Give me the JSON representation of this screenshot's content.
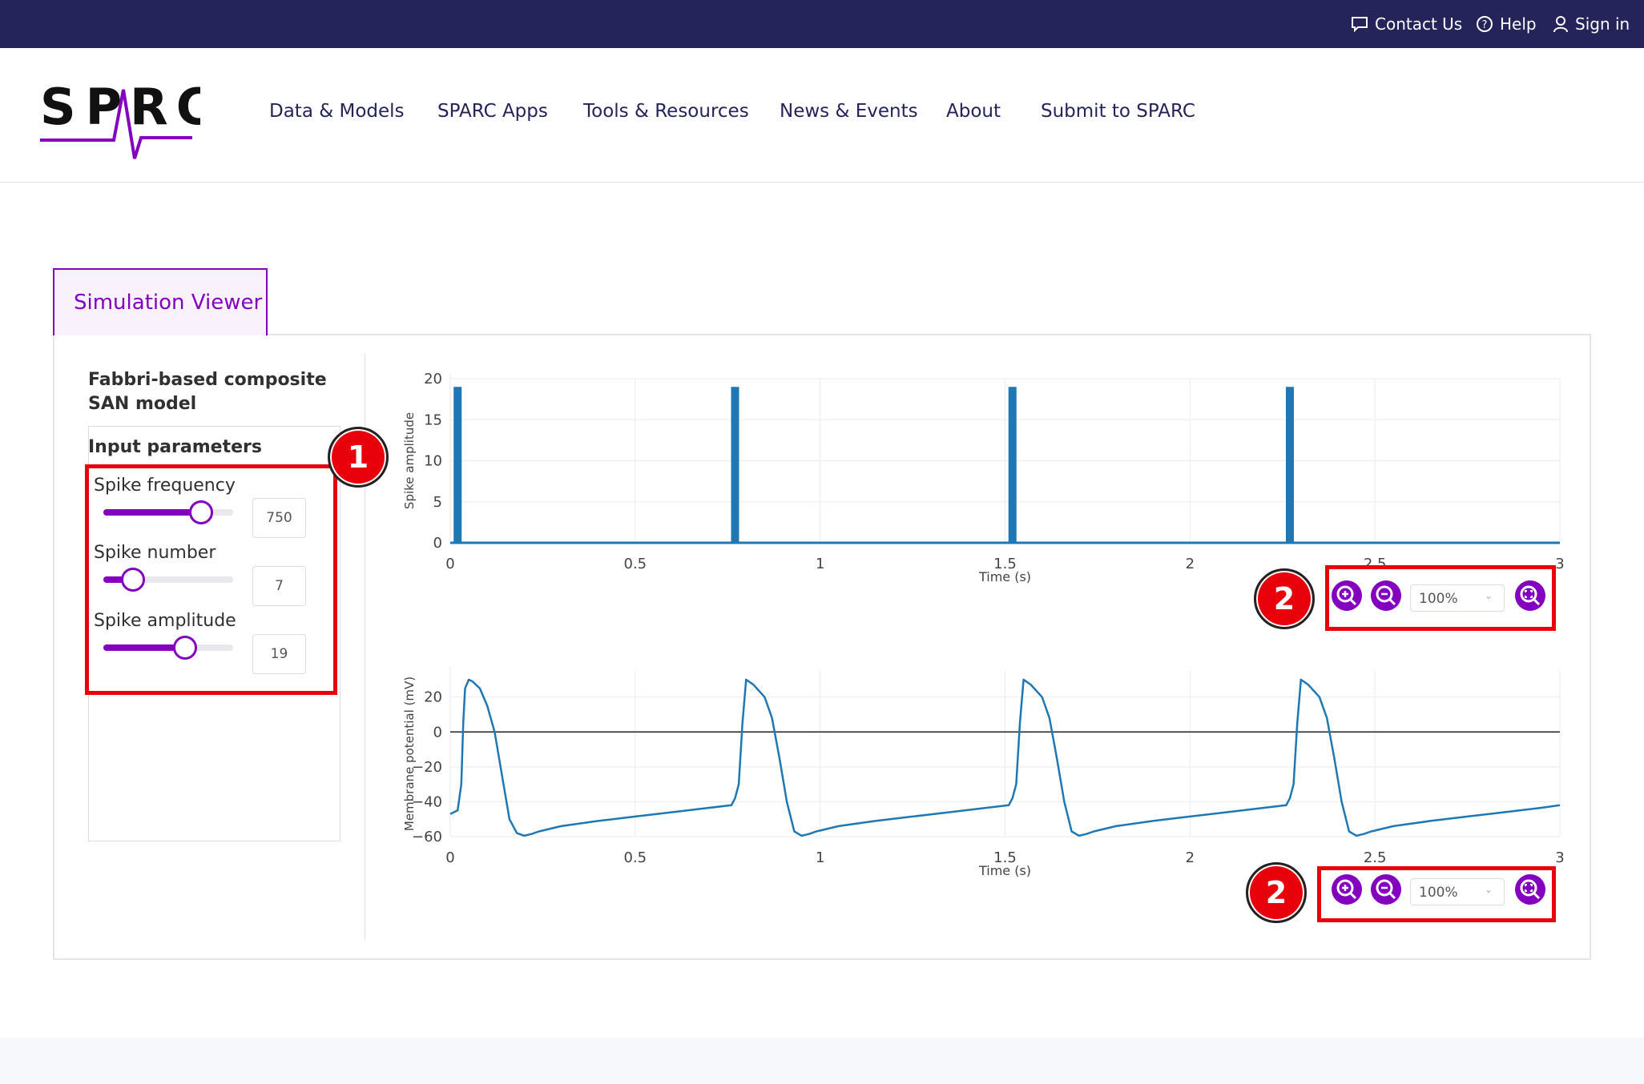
{
  "topbar": {
    "contact_label": "Contact Us",
    "help_label": "Help",
    "signin_label": "Sign in"
  },
  "header": {
    "logo_text": "SPARC",
    "nav": [
      "Data & Models",
      "SPARC Apps",
      "Tools & Resources",
      "News & Events",
      "About",
      "Submit to SPARC"
    ]
  },
  "viewer": {
    "tab_label": "Simulation Viewer",
    "model_title": "Fabbri-based composite SAN model",
    "input_title": "Input parameters",
    "params": [
      {
        "label": "Spike frequency",
        "value": "750",
        "fraction": 0.75
      },
      {
        "label": "Spike number",
        "value": "7",
        "fraction": 0.23
      },
      {
        "label": "Spike amplitude",
        "value": "19",
        "fraction": 0.63
      }
    ]
  },
  "annotations": {
    "marker_1": "1",
    "marker_2": "2"
  },
  "zoom": {
    "level_top": "100%",
    "level_bottom": "100%"
  },
  "colors": {
    "brand_dark": "#24245b",
    "accent_purple": "#8300bf",
    "annotation_red": "#e8000b",
    "series_blue": "#1f77b4"
  },
  "chart_data": [
    {
      "type": "bar",
      "title": "",
      "xlabel": "Time (s)",
      "ylabel": "Spike amplitude",
      "xlim": [
        0,
        3
      ],
      "ylim": [
        0,
        20
      ],
      "xticks": [
        "0",
        "0.5",
        "1",
        "1.5",
        "2",
        "2.5",
        "3"
      ],
      "yticks": [
        "0",
        "5",
        "10",
        "15",
        "20"
      ],
      "grid": true,
      "series": [
        {
          "x": [
            0.02,
            0.77,
            1.52,
            2.27
          ],
          "values": [
            19,
            19,
            19,
            19
          ]
        }
      ]
    },
    {
      "type": "line",
      "title": "",
      "xlabel": "Time (s)",
      "ylabel": "Membrane potential (mV)",
      "xlim": [
        0,
        3
      ],
      "ylim": [
        -60,
        35
      ],
      "xticks": [
        "0",
        "0.5",
        "1",
        "1.5",
        "2",
        "2.5",
        "3"
      ],
      "yticks": [
        "20",
        "0",
        "−20",
        "−40",
        "−60"
      ],
      "grid": true,
      "series": [
        {
          "x": [
            0,
            0.02,
            0.03,
            0.035,
            0.04,
            0.05,
            0.06,
            0.08,
            0.1,
            0.12,
            0.14,
            0.16,
            0.18,
            0.2,
            0.21,
            0.22,
            0.24,
            0.3,
            0.4,
            0.5,
            0.6,
            0.7,
            0.76,
            0.77,
            0.78,
            0.79,
            0.8,
            0.82,
            0.85,
            0.87,
            0.89,
            0.91,
            0.93,
            0.95,
            0.96,
            0.97,
            0.99,
            1.05,
            1.15,
            1.25,
            1.35,
            1.45,
            1.51,
            1.52,
            1.53,
            1.54,
            1.55,
            1.57,
            1.6,
            1.62,
            1.64,
            1.66,
            1.68,
            1.7,
            1.71,
            1.72,
            1.74,
            1.8,
            1.9,
            2.0,
            2.1,
            2.2,
            2.26,
            2.27,
            2.28,
            2.29,
            2.3,
            2.32,
            2.35,
            2.37,
            2.39,
            2.41,
            2.43,
            2.45,
            2.46,
            2.47,
            2.49,
            2.55,
            2.65,
            2.75,
            2.85,
            2.95,
            3.0
          ],
          "values": [
            -47,
            -45,
            -30,
            5,
            25,
            30,
            29,
            25,
            15,
            0,
            -25,
            -50,
            -58,
            -59.5,
            -59,
            -58.5,
            -57,
            -54,
            -51,
            -48.5,
            -46,
            -43.5,
            -42,
            -38,
            -30,
            5,
            30,
            27,
            20,
            8,
            -15,
            -40,
            -57,
            -59.5,
            -59,
            -58.5,
            -57,
            -54,
            -51,
            -48.5,
            -46,
            -43.5,
            -42,
            -38,
            -30,
            5,
            30,
            27,
            20,
            8,
            -15,
            -40,
            -57,
            -59.5,
            -59,
            -58.5,
            -57,
            -54,
            -51,
            -48.5,
            -46,
            -43.5,
            -42,
            -38,
            -30,
            5,
            30,
            27,
            20,
            8,
            -15,
            -40,
            -57,
            -59.5,
            -59,
            -58.5,
            -57,
            -54,
            -51,
            -48.5,
            -46,
            -43.5,
            -42
          ]
        }
      ]
    }
  ]
}
